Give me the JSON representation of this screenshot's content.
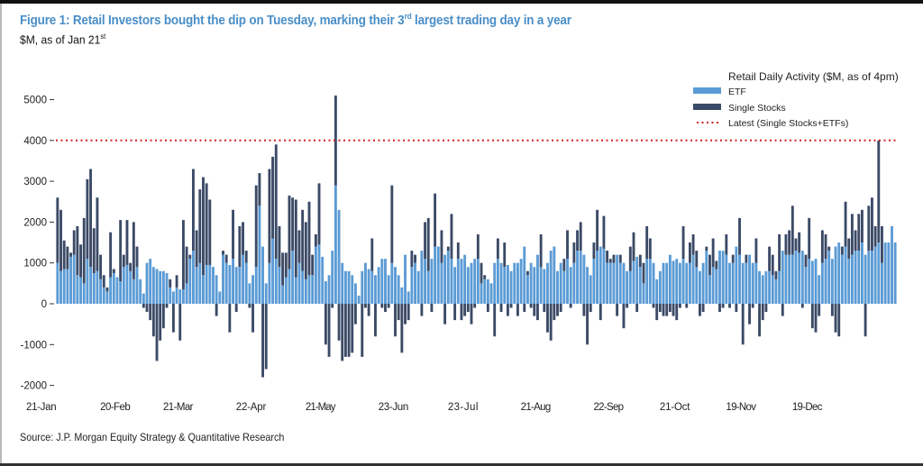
{
  "chart_data": {
    "type": "bar",
    "stacked": true,
    "title_prefix": "Figure 1: Retail Investors bought the dip on Tuesday, marking their 3",
    "title_sup": "rd",
    "title_suffix": " largest trading day in a year",
    "subtitle_prefix": "$M, as of Jan 21",
    "subtitle_sup": "st",
    "source": "Source: J.P. Morgan Equity Strategy & Quantitative Research",
    "ylabel": "",
    "xlabel": "",
    "ylim": [
      -2000,
      5000
    ],
    "yticks": [
      5000,
      4000,
      3000,
      2000,
      1000,
      0,
      -1000,
      -2000
    ],
    "xtick_labels": [
      "21-Jan",
      "20-Feb",
      "21-Mar",
      "22-Apr",
      "21-May",
      "23-Jun",
      "23-Jul",
      "21-Aug",
      "22-Sep",
      "21-Oct",
      "19-Nov",
      "19-Dec"
    ],
    "xtick_positions": [
      0,
      21,
      40,
      62,
      83,
      105,
      126,
      148,
      170,
      190,
      210,
      230
    ],
    "legend": {
      "title": "Retail Daily Activity ($M, as of 4pm)",
      "position": "top-right",
      "items": [
        {
          "label": "ETF",
          "type": "bar",
          "color": "#5b9bd5"
        },
        {
          "label": "Single Stocks",
          "type": "bar",
          "color": "#3b4a66"
        },
        {
          "label": "Latest (Single Stocks+ETFs)",
          "type": "dotted-line",
          "color": "#d42020"
        }
      ]
    },
    "reference_line": {
      "label": "Latest (Single Stocks+ETFs)",
      "value": 4000,
      "color": "#d42020"
    },
    "series": [
      {
        "name": "ETF",
        "color": "#5b9bd5",
        "values": [
          1000,
          800,
          850,
          850,
          1150,
          1200,
          700,
          650,
          500,
          1100,
          900,
          750,
          800,
          600,
          400,
          300,
          650,
          750,
          650,
          550,
          900,
          950,
          800,
          600,
          900,
          600,
          250,
          1000,
          1100,
          900,
          850,
          800,
          800,
          750,
          400,
          300,
          400,
          350,
          350,
          500,
          1100,
          1300,
          900,
          1000,
          700,
          950,
          950,
          900,
          700,
          300,
          1200,
          1000,
          950,
          1100,
          900,
          900,
          1200,
          1000,
          500,
          700,
          900,
          2400,
          1400,
          500,
          1000,
          1600,
          1100,
          900,
          450,
          650,
          850,
          1300,
          650,
          1000,
          800,
          600,
          700,
          700,
          1400,
          1450,
          1150,
          550,
          700,
          1300,
          2900,
          2300,
          1000,
          800,
          800,
          700,
          500,
          200,
          800,
          1000,
          850,
          800,
          700,
          900,
          1100,
          1100,
          700,
          1000,
          900,
          700,
          400,
          1200,
          300,
          900,
          1000,
          800,
          1300,
          1100,
          800,
          1100,
          1400,
          1400,
          1000,
          1200,
          1300,
          1100,
          900,
          1100,
          1100,
          1200,
          900,
          1000,
          1100,
          1100,
          500,
          600,
          600,
          500,
          1000,
          1100,
          1000,
          900,
          950,
          800,
          1000,
          1000,
          1100,
          1400,
          700,
          1000,
          900,
          1200,
          900,
          850,
          1000,
          1300,
          1400,
          800,
          1000,
          800,
          1100,
          900,
          1000,
          1300,
          1300,
          1200,
          900,
          700,
          1100,
          1300,
          1400,
          1350,
          1000,
          1000,
          1000,
          1200,
          1000,
          1000,
          800,
          800,
          1050,
          1150,
          900,
          500,
          1100,
          1100,
          1000,
          600,
          800,
          1000,
          1000,
          1200,
          1050,
          1100,
          1000,
          1100,
          1000,
          1000,
          1200,
          900,
          800,
          1000,
          1300,
          700,
          900,
          850,
          1300,
          1300,
          1200,
          1000,
          1000,
          1400,
          1200,
          1000,
          1000,
          1200,
          1000,
          1000,
          800,
          700,
          800,
          800,
          700,
          600,
          800,
          1300,
          1200,
          1200,
          1200,
          1300,
          1250,
          1300,
          900,
          1100,
          1050,
          1100,
          700,
          1000,
          1100,
          1300,
          1100,
          1400,
          1500,
          1200,
          1400,
          1100,
          1200,
          1300,
          1300,
          1500,
          1200,
          1300,
          1300,
          1400,
          1500,
          1000,
          1500,
          1500,
          1900,
          1500
        ],
        "negatives_note": "ETF values are non-negative"
      },
      {
        "name": "Single Stocks",
        "color": "#3b4a66",
        "values": [
          1600,
          1500,
          700,
          550,
          100,
          600,
          1200,
          800,
          1600,
          1950,
          2400,
          1100,
          1800,
          600,
          300,
          100,
          1100,
          100,
          0,
          1500,
          300,
          1100,
          200,
          1400,
          500,
          0,
          -100,
          -200,
          -400,
          -800,
          -1400,
          -900,
          -600,
          -100,
          200,
          -700,
          300,
          -900,
          1700,
          900,
          100,
          2000,
          900,
          1800,
          2400,
          2000,
          1600,
          0,
          -300,
          0,
          100,
          200,
          -700,
          1200,
          -200,
          1000,
          800,
          300,
          -100,
          -700,
          2000,
          800,
          -1800,
          -1600,
          2300,
          2000,
          2800,
          1000,
          800,
          600,
          1800,
          1300,
          1900,
          800,
          1500,
          1400,
          1800,
          500,
          300,
          1500,
          0,
          -1000,
          -1300,
          -100,
          2200,
          -900,
          -1400,
          -1300,
          -1300,
          -1200,
          -500,
          0,
          -1300,
          -100,
          -300,
          800,
          -800,
          0,
          -100,
          -200,
          -100,
          1900,
          -800,
          -400,
          -1200,
          -500,
          -400,
          400,
          200,
          0,
          -300,
          900,
          1300,
          -200,
          1300,
          0,
          800,
          -500,
          100,
          1100,
          -400,
          400,
          -400,
          -300,
          -200,
          -500,
          -100,
          600,
          500,
          100,
          -200,
          0,
          -800,
          500,
          -200,
          600,
          -300,
          -100,
          0,
          -300,
          0,
          -200,
          100,
          -100,
          -300,
          -400,
          800,
          -200,
          -700,
          -900,
          -400,
          -300,
          -200,
          300,
          700,
          -100,
          500,
          500,
          700,
          -300,
          -1000,
          -200,
          400,
          1000,
          -400,
          800,
          300,
          100,
          200,
          -300,
          200,
          -600,
          -100,
          600,
          700,
          -200,
          300,
          500,
          800,
          500,
          -100,
          -400,
          -200,
          -300,
          -300,
          -200,
          -300,
          -400,
          -100,
          800,
          -100,
          500,
          500,
          400,
          -300,
          -200,
          100,
          500,
          700,
          200,
          -200,
          -100,
          500,
          -100,
          200,
          -200,
          900,
          -1000,
          200,
          -500,
          -100,
          600,
          -800,
          -400,
          -200,
          600,
          500,
          200,
          900,
          -300,
          500,
          600,
          1200,
          300,
          500,
          -100,
          300,
          1000,
          -600,
          -700,
          -300,
          800,
          600,
          100,
          -300,
          -700,
          -800,
          200,
          1100,
          500,
          1000,
          500,
          900,
          800,
          -800,
          1100,
          1300,
          500,
          2500,
          900
        ]
      }
    ]
  }
}
